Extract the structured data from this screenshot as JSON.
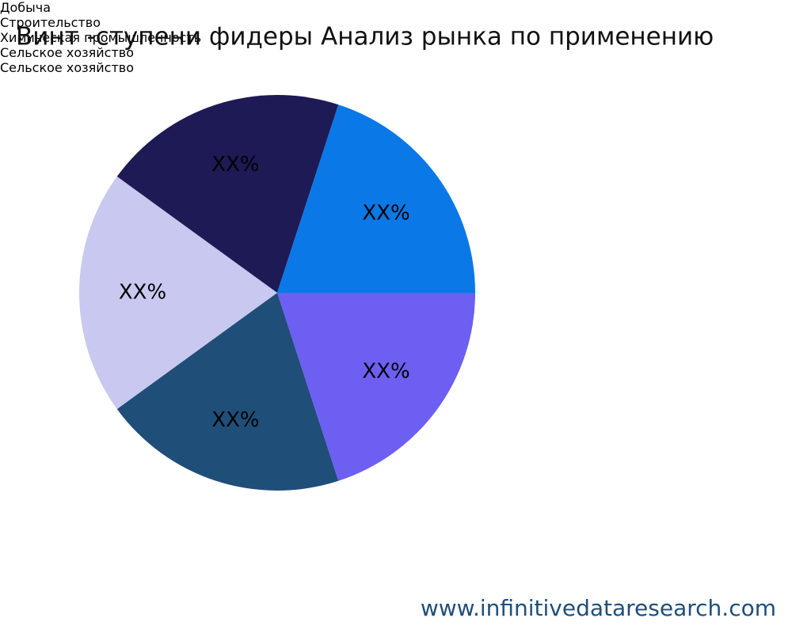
{
  "chart_data": {
    "type": "pie",
    "title": "Винт -ступени фидеры Анализ рынка по применению",
    "categories": [
      "Добыча",
      "Строительство",
      "Химическая промышленность",
      "Сельское хозяйство",
      "Сельское хозяйство"
    ],
    "values": [
      20,
      20,
      20,
      20,
      20
    ],
    "value_labels": [
      "XX%",
      "XX%",
      "XX%",
      "XX%",
      "XX%"
    ],
    "colors": [
      "#6c5ff2",
      "#1f4e79",
      "#c8c8f0",
      "#1e1a55",
      "#0a78e6"
    ],
    "legend": "right",
    "source": "www.infinitivedataresearch.com"
  }
}
